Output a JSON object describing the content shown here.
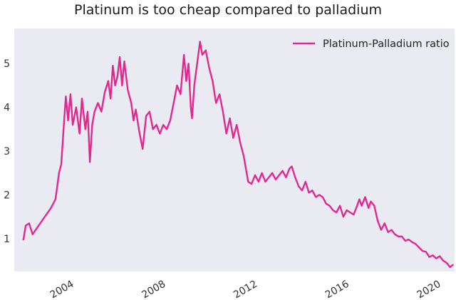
{
  "chart_data": {
    "type": "line",
    "title": "Platinum is too cheap compared to palladium",
    "xlabel": "",
    "ylabel": "",
    "xlim": [
      2001.5,
      2020.7
    ],
    "ylim": [
      0.25,
      5.8
    ],
    "grid": false,
    "legend_position": "top-right",
    "background": "#eaeaf2",
    "line_color": "#e2288f",
    "x_ticks": [
      2004,
      2008,
      2012,
      2016,
      2020
    ],
    "y_ticks": [
      1,
      2,
      3,
      4,
      5
    ],
    "x_tick_labels": [
      "2004",
      "2008",
      "2012",
      "2016",
      "2020"
    ],
    "y_tick_labels": [
      "1",
      "2",
      "3",
      "4",
      "5"
    ],
    "series": [
      {
        "name": "Platinum-Palladium ratio",
        "points": [
          [
            2001.9,
            0.98
          ],
          [
            2002.0,
            1.3
          ],
          [
            2002.15,
            1.35
          ],
          [
            2002.3,
            1.1
          ],
          [
            2002.5,
            1.25
          ],
          [
            2002.7,
            1.4
          ],
          [
            2002.9,
            1.55
          ],
          [
            2003.1,
            1.7
          ],
          [
            2003.3,
            1.9
          ],
          [
            2003.45,
            2.5
          ],
          [
            2003.55,
            2.7
          ],
          [
            2003.65,
            3.5
          ],
          [
            2003.75,
            4.25
          ],
          [
            2003.85,
            3.7
          ],
          [
            2003.95,
            4.3
          ],
          [
            2004.05,
            3.6
          ],
          [
            2004.2,
            4.0
          ],
          [
            2004.35,
            3.4
          ],
          [
            2004.45,
            4.2
          ],
          [
            2004.6,
            3.5
          ],
          [
            2004.7,
            3.9
          ],
          [
            2004.8,
            2.75
          ],
          [
            2004.9,
            3.6
          ],
          [
            2005.0,
            3.9
          ],
          [
            2005.15,
            4.1
          ],
          [
            2005.3,
            3.9
          ],
          [
            2005.45,
            4.35
          ],
          [
            2005.6,
            4.6
          ],
          [
            2005.7,
            4.2
          ],
          [
            2005.8,
            4.95
          ],
          [
            2005.9,
            4.5
          ],
          [
            2006.0,
            4.7
          ],
          [
            2006.1,
            5.15
          ],
          [
            2006.2,
            4.5
          ],
          [
            2006.3,
            5.05
          ],
          [
            2006.45,
            4.4
          ],
          [
            2006.6,
            4.1
          ],
          [
            2006.7,
            3.7
          ],
          [
            2006.8,
            3.95
          ],
          [
            2006.95,
            3.45
          ],
          [
            2007.1,
            3.05
          ],
          [
            2007.25,
            3.8
          ],
          [
            2007.4,
            3.9
          ],
          [
            2007.55,
            3.5
          ],
          [
            2007.7,
            3.6
          ],
          [
            2007.85,
            3.4
          ],
          [
            2008.0,
            3.6
          ],
          [
            2008.15,
            3.5
          ],
          [
            2008.3,
            3.7
          ],
          [
            2008.45,
            4.1
          ],
          [
            2008.6,
            4.5
          ],
          [
            2008.75,
            4.3
          ],
          [
            2008.9,
            5.2
          ],
          [
            2009.0,
            4.6
          ],
          [
            2009.1,
            5.0
          ],
          [
            2009.2,
            4.0
          ],
          [
            2009.25,
            3.75
          ],
          [
            2009.35,
            4.5
          ],
          [
            2009.5,
            5.1
          ],
          [
            2009.6,
            5.5
          ],
          [
            2009.7,
            5.2
          ],
          [
            2009.85,
            5.3
          ],
          [
            2010.0,
            4.9
          ],
          [
            2010.15,
            4.6
          ],
          [
            2010.3,
            4.1
          ],
          [
            2010.45,
            4.3
          ],
          [
            2010.6,
            3.9
          ],
          [
            2010.75,
            3.4
          ],
          [
            2010.9,
            3.75
          ],
          [
            2011.05,
            3.3
          ],
          [
            2011.2,
            3.6
          ],
          [
            2011.35,
            3.2
          ],
          [
            2011.5,
            2.9
          ],
          [
            2011.6,
            2.6
          ],
          [
            2011.7,
            2.3
          ],
          [
            2011.85,
            2.25
          ],
          [
            2012.0,
            2.45
          ],
          [
            2012.15,
            2.3
          ],
          [
            2012.3,
            2.5
          ],
          [
            2012.45,
            2.3
          ],
          [
            2012.6,
            2.4
          ],
          [
            2012.75,
            2.5
          ],
          [
            2012.9,
            2.35
          ],
          [
            2013.05,
            2.45
          ],
          [
            2013.2,
            2.55
          ],
          [
            2013.35,
            2.4
          ],
          [
            2013.5,
            2.6
          ],
          [
            2013.6,
            2.65
          ],
          [
            2013.75,
            2.4
          ],
          [
            2013.9,
            2.2
          ],
          [
            2014.05,
            2.1
          ],
          [
            2014.2,
            2.3
          ],
          [
            2014.35,
            2.05
          ],
          [
            2014.5,
            2.1
          ],
          [
            2014.65,
            1.95
          ],
          [
            2014.8,
            2.0
          ],
          [
            2014.95,
            1.95
          ],
          [
            2015.1,
            1.8
          ],
          [
            2015.25,
            1.75
          ],
          [
            2015.4,
            1.65
          ],
          [
            2015.55,
            1.6
          ],
          [
            2015.7,
            1.75
          ],
          [
            2015.85,
            1.5
          ],
          [
            2016.0,
            1.65
          ],
          [
            2016.15,
            1.6
          ],
          [
            2016.3,
            1.55
          ],
          [
            2016.45,
            1.75
          ],
          [
            2016.55,
            1.9
          ],
          [
            2016.65,
            1.75
          ],
          [
            2016.8,
            1.95
          ],
          [
            2016.95,
            1.7
          ],
          [
            2017.05,
            1.85
          ],
          [
            2017.2,
            1.75
          ],
          [
            2017.35,
            1.4
          ],
          [
            2017.5,
            1.2
          ],
          [
            2017.65,
            1.35
          ],
          [
            2017.8,
            1.15
          ],
          [
            2017.95,
            1.2
          ],
          [
            2018.1,
            1.1
          ],
          [
            2018.25,
            1.05
          ],
          [
            2018.4,
            1.05
          ],
          [
            2018.55,
            0.95
          ],
          [
            2018.7,
            0.98
          ],
          [
            2018.85,
            0.92
          ],
          [
            2019.0,
            0.88
          ],
          [
            2019.15,
            0.8
          ],
          [
            2019.3,
            0.72
          ],
          [
            2019.45,
            0.7
          ],
          [
            2019.6,
            0.58
          ],
          [
            2019.75,
            0.62
          ],
          [
            2019.9,
            0.55
          ],
          [
            2020.05,
            0.6
          ],
          [
            2020.2,
            0.5
          ],
          [
            2020.35,
            0.45
          ],
          [
            2020.5,
            0.35
          ],
          [
            2020.62,
            0.4
          ]
        ]
      }
    ]
  }
}
